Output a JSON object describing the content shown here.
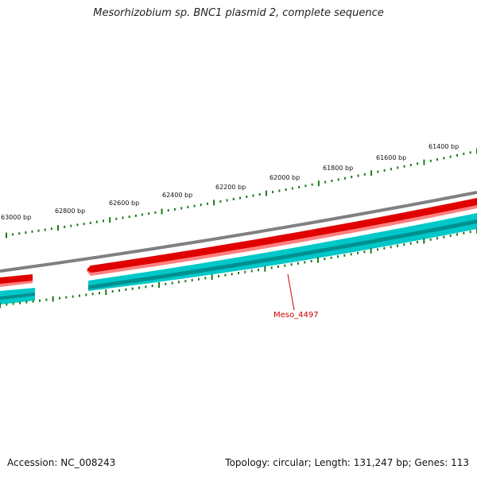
{
  "title": "Mesorhizobium sp. BNC1 plasmid 2, complete sequence",
  "accession": "Accession: NC_008243",
  "summary": "Topology: circular; Length: 131,247 bp; Genes: 113",
  "ticks": [
    "63000 bp",
    "62800 bp",
    "62600 bp",
    "62400 bp",
    "62200 bp",
    "62000 bp",
    "61800 bp",
    "61600 bp",
    "61400 bp"
  ],
  "gene_label": "Meso_4497",
  "colors": {
    "backbone": "#808080",
    "forward_gene": "#e00000",
    "forward_gene_light": "#ff8080",
    "cds": "#00c8c8",
    "cds_dark": "#009090",
    "tick": "#1a7a1a",
    "gene_label": "#cc0000"
  }
}
